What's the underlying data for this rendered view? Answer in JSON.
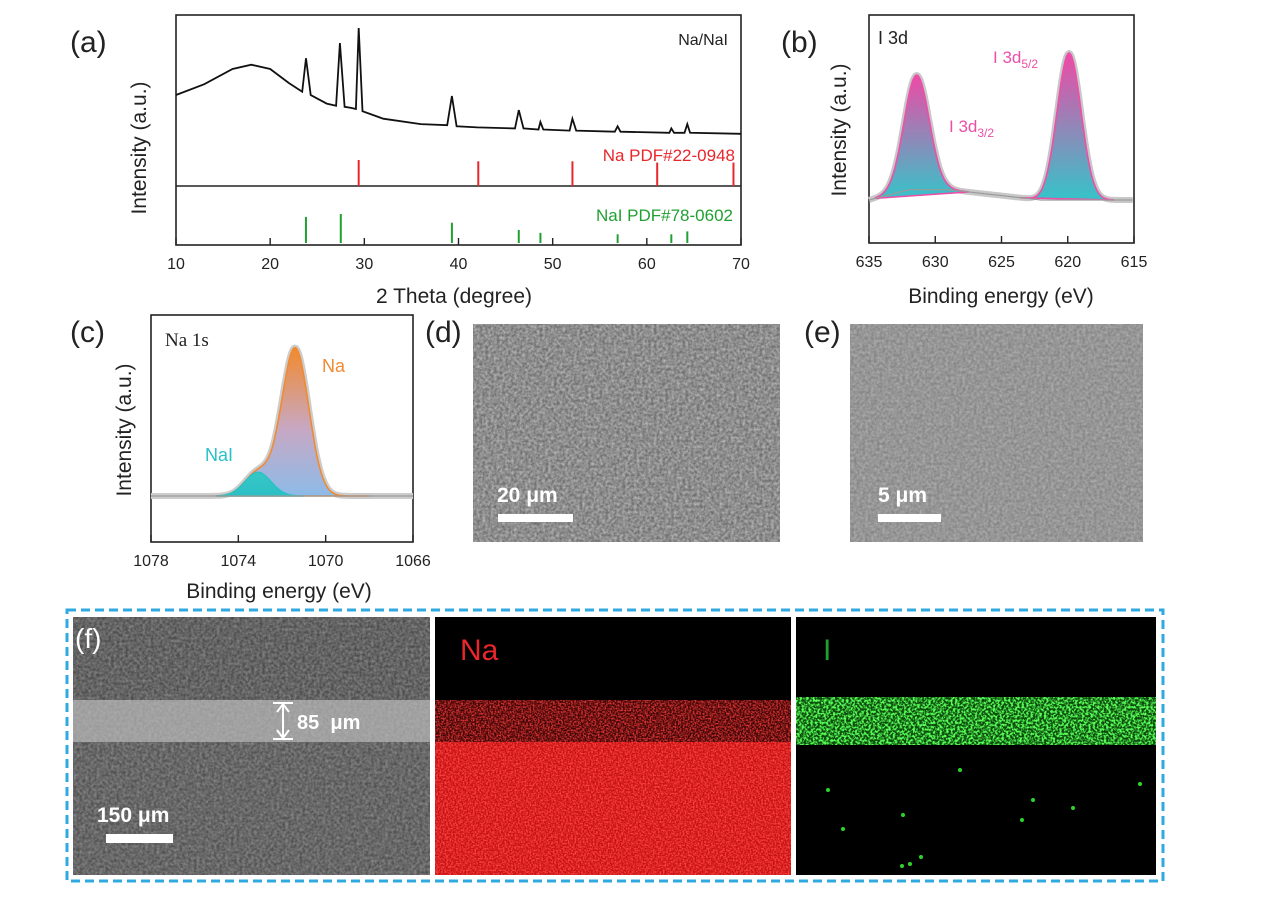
{
  "panels": {
    "a": {
      "letter": "(a)"
    },
    "b": {
      "letter": "(b)"
    },
    "c": {
      "letter": "(c)"
    },
    "d": {
      "letter": "(d)",
      "scale_bar": "20 μm"
    },
    "e": {
      "letter": "(e)",
      "scale_bar": "5 μm"
    },
    "f": {
      "letter": "(f)",
      "scale_bar": "150 μm",
      "thickness": "85  μm",
      "map_na": "Na",
      "map_i": "I"
    }
  },
  "colors": {
    "red": "#e8262b",
    "green": "#21a032",
    "pink": "#ec4fa8",
    "cyan": "#27c2c8",
    "orange": "#f08a32",
    "blue": "#8db8e6",
    "dash": "#2fa9e0"
  },
  "chart_data": [
    {
      "type": "line",
      "panel": "a",
      "xlabel": "2 Theta (degree)",
      "ylabel": "Intensity (a.u.)",
      "xlim": [
        10,
        70
      ],
      "xticks": [
        10,
        20,
        30,
        40,
        50,
        60,
        70
      ],
      "series": [
        {
          "name": "Na/NaI",
          "x": [
            10,
            13,
            16,
            18,
            20,
            22,
            23.4,
            23.8,
            24.3,
            26,
            27.0,
            27.4,
            27.9,
            28.6,
            29.1,
            29.4,
            29.8,
            32,
            36,
            38.8,
            39.3,
            39.8,
            42,
            46.0,
            46.4,
            46.9,
            48.5,
            48.7,
            49.0,
            51.8,
            52.1,
            52.5,
            56.6,
            56.9,
            57.2,
            62.4,
            62.6,
            62.9,
            64.0,
            64.3,
            64.6,
            70
          ],
          "y": [
            0.38,
            0.48,
            0.62,
            0.66,
            0.62,
            0.49,
            0.41,
            0.72,
            0.38,
            0.3,
            0.28,
            0.86,
            0.27,
            0.26,
            0.25,
            1.0,
            0.23,
            0.16,
            0.11,
            0.1,
            0.37,
            0.09,
            0.08,
            0.07,
            0.24,
            0.07,
            0.06,
            0.13,
            0.06,
            0.05,
            0.16,
            0.05,
            0.04,
            0.09,
            0.04,
            0.03,
            0.07,
            0.03,
            0.03,
            0.11,
            0.03,
            0.02
          ]
        }
      ],
      "references": [
        {
          "name": "Na PDF#22-0948",
          "positions": [
            29.4,
            42.1,
            52.1,
            61.1,
            69.2
          ],
          "heights": [
            1.0,
            0.95,
            0.95,
            0.9,
            0.9
          ]
        },
        {
          "name": "NaI PDF#78-0602",
          "positions": [
            23.8,
            27.5,
            39.3,
            46.4,
            48.7,
            56.9,
            62.6,
            64.3
          ],
          "heights": [
            0.9,
            1.0,
            0.7,
            0.45,
            0.35,
            0.3,
            0.3,
            0.4
          ]
        }
      ]
    },
    {
      "type": "area",
      "panel": "b",
      "title": "I 3d",
      "xlabel": "Binding energy (eV)",
      "ylabel": "Intensity (a.u.)",
      "xlim": [
        635,
        615
      ],
      "xticks": [
        635,
        630,
        625,
        620,
        615
      ],
      "peaks": [
        {
          "label": "I 3d",
          "sub": "3/2",
          "center": 631.4,
          "height": 0.78
        },
        {
          "label": "I 3d",
          "sub": "5/2",
          "center": 619.9,
          "height": 1.0
        }
      ]
    },
    {
      "type": "area",
      "panel": "c",
      "title": "Na 1s",
      "xlabel": "Binding energy (eV)",
      "ylabel": "Intensity (a.u.)",
      "xlim": [
        1078,
        1066
      ],
      "xticks": [
        1078,
        1074,
        1070,
        1066
      ],
      "peaks": [
        {
          "label": "NaI",
          "center": 1073.1,
          "height": 0.16
        },
        {
          "label": "Na",
          "center": 1071.4,
          "height": 1.0
        }
      ]
    }
  ]
}
